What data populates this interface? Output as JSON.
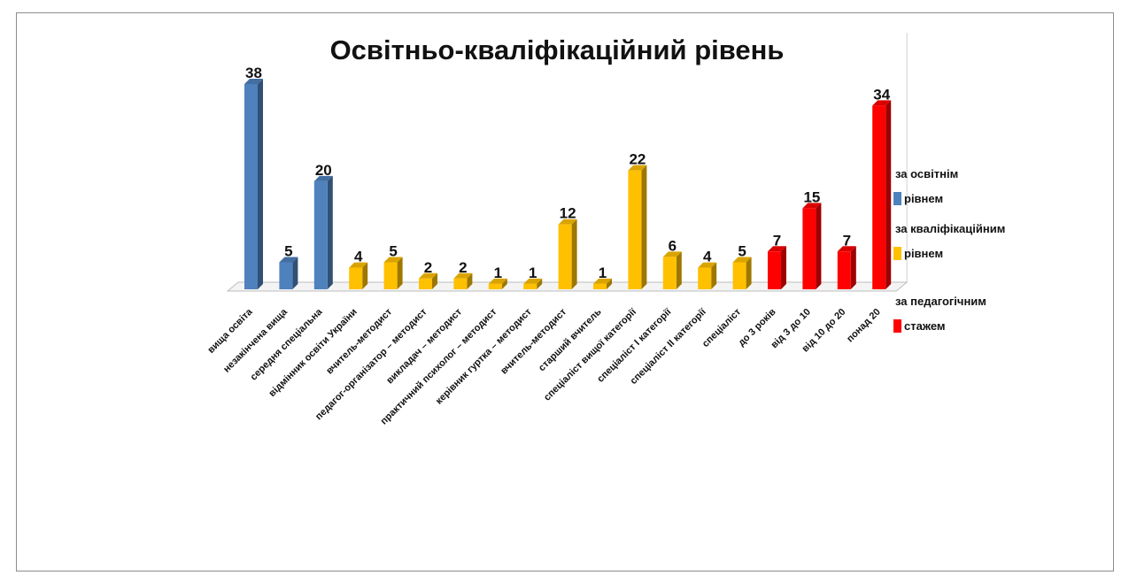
{
  "chart_data": {
    "type": "bar",
    "title": "Освітньо-кваліфікаційний рівень",
    "categories": [
      "вища освіта",
      "незакінчена вища",
      "середня спеціальна",
      "відмінник освіти України",
      "вчитель-методист",
      "педагог-організатор – методист",
      "викладач – методист",
      "практичний психолог – методист",
      "керівник гуртка – методист",
      "вчитель-методист",
      "старший вчитель",
      "спеціаліст вищої категорії",
      "спеціаліст І категорії",
      "спеціаліст ІІ категорії",
      "спеціаліст",
      "до 3 років",
      "від 3 до 10",
      "від 10 до 20",
      "понад 20"
    ],
    "values": [
      38,
      5,
      20,
      4,
      5,
      2,
      2,
      1,
      1,
      12,
      1,
      22,
      6,
      4,
      5,
      7,
      15,
      7,
      34
    ],
    "group_of_bar": [
      0,
      0,
      0,
      1,
      1,
      1,
      1,
      1,
      1,
      1,
      1,
      1,
      1,
      1,
      1,
      2,
      2,
      2,
      2
    ],
    "ylim": [
      0,
      38
    ],
    "grid": false,
    "legend_position": "right",
    "legend": [
      {
        "label": "за освітнім рівнем",
        "color": "#4f81bd"
      },
      {
        "label": "за кваліфікаційним рівнем",
        "color": "#ffc000"
      },
      {
        "label": "за педагогічним стажем",
        "color": "#ff0000"
      }
    ]
  }
}
